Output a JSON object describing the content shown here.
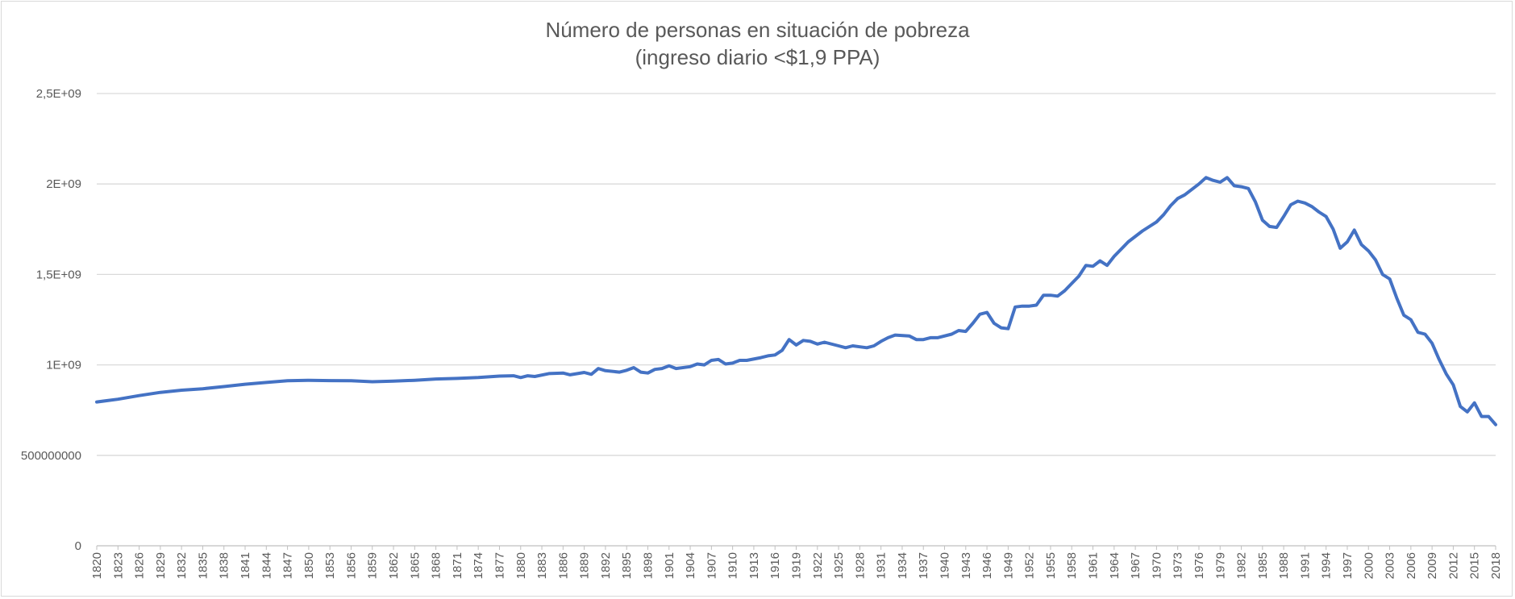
{
  "chart_data": {
    "type": "line",
    "title": "Número de personas en situación de pobreza",
    "subtitle": "(ingreso diario <$1,9 PPA)",
    "xlabel": "",
    "ylabel": "",
    "ylim": [
      0,
      2500000000
    ],
    "yticks": [
      0,
      500000000,
      1000000000,
      1500000000,
      2000000000,
      2500000000
    ],
    "ytick_labels": [
      "0",
      "500000000",
      "1E+09",
      "1,5E+09",
      "2E+09",
      "2,5E+09"
    ],
    "grid": true,
    "legend": "none",
    "line_color": "#4472c4",
    "x_start": 1820,
    "x_end": 2018,
    "x_tick_labels": [
      "1820",
      "1823",
      "1826",
      "1829",
      "1832",
      "1835",
      "1838",
      "1841",
      "1844",
      "1847",
      "1850",
      "1853",
      "1856",
      "1859",
      "1862",
      "1865",
      "1868",
      "1871",
      "1874",
      "1877",
      "1880",
      "1883",
      "1886",
      "1889",
      "1892",
      "1895",
      "1898",
      "1901",
      "1904",
      "1907",
      "1910",
      "1913",
      "1916",
      "1919",
      "1922",
      "1925",
      "1928",
      "1931",
      "1934",
      "1937",
      "1940",
      "1943",
      "1946",
      "1949",
      "1952",
      "1955",
      "1958",
      "1961",
      "1964",
      "1967",
      "1970",
      "1973",
      "1976",
      "1979",
      "1982",
      "1985",
      "1988",
      "1991",
      "1994",
      "1997",
      "2000",
      "2003",
      "2006",
      "2009",
      "2012",
      "2015",
      "2018"
    ],
    "keypoints": [
      [
        1820,
        795000000
      ],
      [
        1823,
        810000000
      ],
      [
        1826,
        830000000
      ],
      [
        1829,
        848000000
      ],
      [
        1832,
        860000000
      ],
      [
        1835,
        868000000
      ],
      [
        1838,
        880000000
      ],
      [
        1841,
        893000000
      ],
      [
        1844,
        903000000
      ],
      [
        1847,
        912000000
      ],
      [
        1850,
        915000000
      ],
      [
        1853,
        913000000
      ],
      [
        1856,
        912000000
      ],
      [
        1859,
        907000000
      ],
      [
        1862,
        910000000
      ],
      [
        1865,
        915000000
      ],
      [
        1868,
        922000000
      ],
      [
        1871,
        925000000
      ],
      [
        1874,
        930000000
      ],
      [
        1877,
        938000000
      ],
      [
        1879,
        940000000
      ],
      [
        1880,
        930000000
      ],
      [
        1881,
        940000000
      ],
      [
        1882,
        936000000
      ],
      [
        1884,
        952000000
      ],
      [
        1886,
        955000000
      ],
      [
        1887,
        945000000
      ],
      [
        1889,
        958000000
      ],
      [
        1890,
        948000000
      ],
      [
        1891,
        980000000
      ],
      [
        1892,
        968000000
      ],
      [
        1894,
        960000000
      ],
      [
        1895,
        970000000
      ],
      [
        1896,
        985000000
      ],
      [
        1897,
        960000000
      ],
      [
        1898,
        955000000
      ],
      [
        1899,
        975000000
      ],
      [
        1900,
        980000000
      ],
      [
        1901,
        995000000
      ],
      [
        1902,
        980000000
      ],
      [
        1904,
        990000000
      ],
      [
        1905,
        1005000000
      ],
      [
        1906,
        1000000000
      ],
      [
        1907,
        1025000000
      ],
      [
        1908,
        1030000000
      ],
      [
        1909,
        1005000000
      ],
      [
        1910,
        1010000000
      ],
      [
        1911,
        1025000000
      ],
      [
        1912,
        1025000000
      ],
      [
        1914,
        1040000000
      ],
      [
        1915,
        1050000000
      ],
      [
        1916,
        1055000000
      ],
      [
        1917,
        1080000000
      ],
      [
        1918,
        1140000000
      ],
      [
        1919,
        1110000000
      ],
      [
        1920,
        1135000000
      ],
      [
        1921,
        1130000000
      ],
      [
        1922,
        1115000000
      ],
      [
        1923,
        1125000000
      ],
      [
        1925,
        1105000000
      ],
      [
        1926,
        1095000000
      ],
      [
        1927,
        1105000000
      ],
      [
        1928,
        1100000000
      ],
      [
        1929,
        1095000000
      ],
      [
        1930,
        1105000000
      ],
      [
        1931,
        1130000000
      ],
      [
        1932,
        1150000000
      ],
      [
        1933,
        1165000000
      ],
      [
        1935,
        1160000000
      ],
      [
        1936,
        1140000000
      ],
      [
        1937,
        1140000000
      ],
      [
        1938,
        1150000000
      ],
      [
        1939,
        1150000000
      ],
      [
        1941,
        1170000000
      ],
      [
        1942,
        1190000000
      ],
      [
        1943,
        1185000000
      ],
      [
        1944,
        1230000000
      ],
      [
        1945,
        1280000000
      ],
      [
        1946,
        1290000000
      ],
      [
        1947,
        1230000000
      ],
      [
        1948,
        1205000000
      ],
      [
        1949,
        1200000000
      ],
      [
        1950,
        1320000000
      ],
      [
        1951,
        1325000000
      ],
      [
        1952,
        1325000000
      ],
      [
        1953,
        1330000000
      ],
      [
        1954,
        1385000000
      ],
      [
        1955,
        1385000000
      ],
      [
        1956,
        1380000000
      ],
      [
        1957,
        1410000000
      ],
      [
        1958,
        1450000000
      ],
      [
        1959,
        1490000000
      ],
      [
        1960,
        1550000000
      ],
      [
        1961,
        1545000000
      ],
      [
        1962,
        1575000000
      ],
      [
        1963,
        1550000000
      ],
      [
        1964,
        1600000000
      ],
      [
        1965,
        1640000000
      ],
      [
        1966,
        1680000000
      ],
      [
        1968,
        1740000000
      ],
      [
        1970,
        1790000000
      ],
      [
        1971,
        1830000000
      ],
      [
        1972,
        1880000000
      ],
      [
        1973,
        1920000000
      ],
      [
        1974,
        1940000000
      ],
      [
        1975,
        1970000000
      ],
      [
        1976,
        2000000000
      ],
      [
        1977,
        2035000000
      ],
      [
        1978,
        2020000000
      ],
      [
        1979,
        2010000000
      ],
      [
        1980,
        2035000000
      ],
      [
        1981,
        1990000000
      ],
      [
        1982,
        1985000000
      ],
      [
        1983,
        1975000000
      ],
      [
        1984,
        1900000000
      ],
      [
        1985,
        1800000000
      ],
      [
        1986,
        1765000000
      ],
      [
        1987,
        1760000000
      ],
      [
        1988,
        1820000000
      ],
      [
        1989,
        1885000000
      ],
      [
        1990,
        1905000000
      ],
      [
        1991,
        1895000000
      ],
      [
        1992,
        1875000000
      ],
      [
        1993,
        1845000000
      ],
      [
        1994,
        1820000000
      ],
      [
        1995,
        1750000000
      ],
      [
        1996,
        1645000000
      ],
      [
        1997,
        1680000000
      ],
      [
        1998,
        1745000000
      ],
      [
        1999,
        1665000000
      ],
      [
        2000,
        1630000000
      ],
      [
        2001,
        1580000000
      ],
      [
        2002,
        1500000000
      ],
      [
        2003,
        1475000000
      ],
      [
        2004,
        1370000000
      ],
      [
        2005,
        1275000000
      ],
      [
        2006,
        1250000000
      ],
      [
        2007,
        1180000000
      ],
      [
        2008,
        1170000000
      ],
      [
        2009,
        1120000000
      ],
      [
        2010,
        1030000000
      ],
      [
        2011,
        950000000
      ],
      [
        2012,
        890000000
      ],
      [
        2013,
        770000000
      ],
      [
        2014,
        740000000
      ],
      [
        2015,
        790000000
      ],
      [
        2016,
        715000000
      ],
      [
        2017,
        715000000
      ],
      [
        2018,
        670000000
      ]
    ]
  }
}
